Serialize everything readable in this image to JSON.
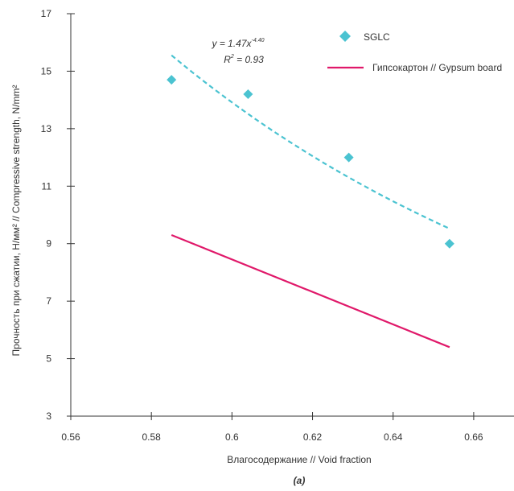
{
  "chart_data": {
    "type": "scatter",
    "xlabel": "Влагосодержание // Void fraction",
    "ylabel": "Прочность при сжатии, Н/мм² // Compressive strength, N/mm²",
    "caption": "(a)",
    "xlim": [
      0.56,
      0.67
    ],
    "ylim": [
      3,
      17
    ],
    "x_ticks": [
      0.56,
      0.58,
      0.6,
      0.62,
      0.64,
      0.66
    ],
    "x_tick_labels": [
      "0.56",
      "0.58",
      "0.6",
      "0.62",
      "0.64",
      "0.66"
    ],
    "y_ticks": [
      3,
      5,
      7,
      9,
      11,
      13,
      15,
      17
    ],
    "y_tick_labels": [
      "3",
      "5",
      "7",
      "9",
      "11",
      "13",
      "15",
      "17"
    ],
    "grid": false,
    "legend_position": "top-right",
    "series": [
      {
        "name": "SGLC",
        "kind": "scatter",
        "marker": "diamond",
        "color": "#4bc3d1",
        "x": [
          0.585,
          0.604,
          0.629,
          0.654
        ],
        "y": [
          14.7,
          14.2,
          12.0,
          9.0
        ]
      },
      {
        "name": "Гипсокартон // Gypsum board",
        "kind": "line",
        "color": "#e0196a",
        "x": [
          0.585,
          0.654
        ],
        "y": [
          9.3,
          5.4
        ]
      }
    ],
    "trendline": {
      "series": "SGLC",
      "style": "dashed",
      "color": "#4bc3d1",
      "a": 1.47,
      "b": -4.4,
      "x_range": [
        0.585,
        0.654
      ],
      "equation_prefix": "y = 1.47x",
      "equation_exponent": "-4.40",
      "r2_label": "R",
      "r2_exponent": "2",
      "r2_value": " = 0.93"
    }
  }
}
